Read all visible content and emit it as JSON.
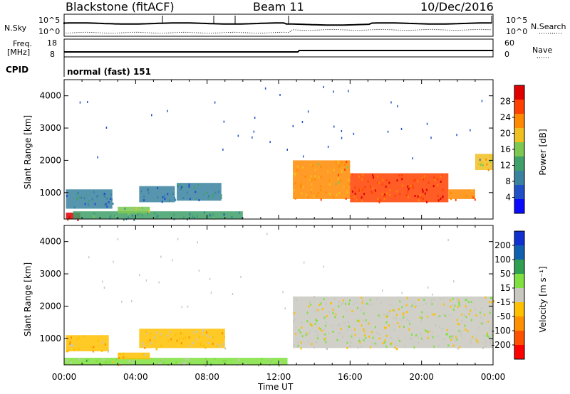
{
  "header": {
    "station": "Blackstone (fitACF)",
    "beam": "Beam 11",
    "date": "10/Dec/2016"
  },
  "top_panel": {
    "left_label": "N.Sky",
    "right_label": "N.Search",
    "left_ticks": [
      "10^5",
      "10^0"
    ],
    "right_ticks": [
      "10^5",
      "10^0"
    ]
  },
  "freq_panel": {
    "left_label_1": "Freq.",
    "left_label_2": "[MHz]",
    "left_ticks": [
      "18",
      "8"
    ],
    "right_ticks": [
      "60",
      "0"
    ],
    "right_label": "Nave",
    "cpid_label": "CPID",
    "cpid_text": "normal (fast) 151"
  },
  "colors": {
    "power": [
      "#0a0aff",
      "#2050c8",
      "#3a82a0",
      "#3fa06a",
      "#7cc850",
      "#f0c020",
      "#ff8a00",
      "#ff4000",
      "#e00000"
    ],
    "velocity": [
      "#ff0000",
      "#ff5000",
      "#ff9000",
      "#ffc000",
      "#c8c8c0",
      "#80e040",
      "#30a050",
      "#1060b0",
      "#1030d0"
    ]
  },
  "chart_data": [
    {
      "type": "heatmap",
      "title": "",
      "xlabel": "",
      "ylabel": "Slant Range [km]",
      "x_tick_labels": [
        "00:00",
        "04:00",
        "08:00",
        "12:00",
        "16:00",
        "20:00",
        "00:00"
      ],
      "y_tick_labels": [
        "1000",
        "2000",
        "3000",
        "4000"
      ],
      "xlim": [
        0,
        24
      ],
      "ylim": [
        180,
        4500
      ],
      "colorbar": {
        "label": "Power [dB]",
        "ticks": [
          "4",
          "8",
          "12",
          "16",
          "20",
          "24",
          "28"
        ],
        "range": [
          0,
          30
        ]
      },
      "patches": [
        {
          "t0": 0.1,
          "t1": 2.7,
          "r0": 500,
          "r1": 1100,
          "value": 8
        },
        {
          "t0": 0.1,
          "t1": 0.9,
          "r0": 180,
          "r1": 380,
          "value": 27
        },
        {
          "t0": 0.5,
          "t1": 10.0,
          "r0": 180,
          "r1": 420,
          "value": 10
        },
        {
          "t0": 3.0,
          "t1": 4.8,
          "r0": 350,
          "r1": 560,
          "value": 14
        },
        {
          "t0": 4.2,
          "t1": 6.2,
          "r0": 700,
          "r1": 1200,
          "value": 7
        },
        {
          "t0": 6.3,
          "t1": 8.8,
          "r0": 750,
          "r1": 1300,
          "value": 9
        },
        {
          "t0": 12.8,
          "t1": 16.0,
          "r0": 800,
          "r1": 2000,
          "value": 20
        },
        {
          "t0": 16.0,
          "t1": 21.5,
          "r0": 700,
          "r1": 1600,
          "value": 25
        },
        {
          "t0": 21.5,
          "t1": 23.0,
          "r0": 800,
          "r1": 1100,
          "value": 23
        },
        {
          "t0": 23.0,
          "t1": 24.0,
          "r0": 1700,
          "r1": 2200,
          "value": 18
        }
      ]
    },
    {
      "type": "heatmap",
      "title": "",
      "xlabel": "Time UT",
      "ylabel": "Slant Range [km]",
      "x_tick_labels": [
        "00:00",
        "04:00",
        "08:00",
        "12:00",
        "16:00",
        "20:00",
        "00:00"
      ],
      "y_tick_labels": [
        "1000",
        "2000",
        "3000",
        "4000"
      ],
      "xlim": [
        0,
        24
      ],
      "ylim": [
        180,
        4500
      ],
      "colorbar": {
        "label": "Velocity [m s⁻¹]",
        "ticks": [
          "-200",
          "-100",
          "-50",
          "-15",
          "15",
          "50",
          "100",
          "200"
        ],
        "range": [
          -250,
          250
        ]
      },
      "patches": [
        {
          "t0": 0.1,
          "t1": 2.5,
          "r0": 600,
          "r1": 1100,
          "value": -60
        },
        {
          "t0": 0.0,
          "t1": 12.5,
          "r0": 180,
          "r1": 400,
          "value": 30
        },
        {
          "t0": 3.0,
          "t1": 4.8,
          "r0": 350,
          "r1": 560,
          "value": -70
        },
        {
          "t0": 4.2,
          "t1": 9.0,
          "r0": 700,
          "r1": 1300,
          "value": -45
        },
        {
          "t0": 12.8,
          "t1": 24.0,
          "r0": 700,
          "r1": 2300,
          "value": 0
        }
      ]
    }
  ]
}
